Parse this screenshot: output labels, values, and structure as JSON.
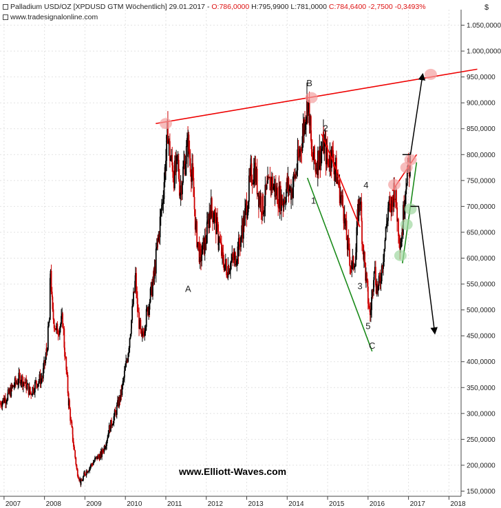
{
  "header": {
    "instrument": "Palladium USD/OZ [XPDUSD GTM  Wöchentlich] 29.01.2017 - ",
    "ohlc_open": "O:786,0000",
    "ohlc_high": " H:795,9900",
    "ohlc_low": " L:781,0000",
    "ohlc_change": " C:784,6400 -2,7500 -0,3493%",
    "website": "www.tradesignalonline.com"
  },
  "currency_symbol": "$",
  "watermark": "www.Elliott-Waves.com",
  "colors": {
    "candle_up": "#000000",
    "candle_down": "#cc0000",
    "trend_red": "#ee0000",
    "trend_green": "#1a8a1a",
    "projection": "#000000",
    "highlight_red": "#f4a0a0",
    "highlight_green": "#9fd79f"
  },
  "chart_data": {
    "type": "line",
    "xlabel": "",
    "ylabel": "",
    "x_ticks": [
      "2007",
      "2008",
      "2009",
      "2010",
      "2011",
      "2012",
      "2013",
      "2014",
      "2015",
      "2016",
      "2017",
      "2018"
    ],
    "y_ticks": [
      "150,0000",
      "200,0000",
      "250,0000",
      "300,0000",
      "350,0000",
      "400,0000",
      "450,0000",
      "500,0000",
      "550,0000",
      "600,0000",
      "650,0000",
      "700,0000",
      "750,0000",
      "800,0000",
      "850,0000",
      "900,0000",
      "950,0000",
      "1.000,0000",
      "1.050,0000"
    ],
    "ylim": [
      140,
      1080
    ],
    "xlim": [
      2006.9,
      2018.3
    ],
    "series": [
      {
        "values": [
          [
            2006.9,
            320
          ],
          [
            2007.1,
            335
          ],
          [
            2007.25,
            355
          ],
          [
            2007.4,
            370
          ],
          [
            2007.55,
            355
          ],
          [
            2007.65,
            340
          ],
          [
            2007.8,
            360
          ],
          [
            2007.95,
            370
          ],
          [
            2008.05,
            420
          ],
          [
            2008.12,
            480
          ],
          [
            2008.15,
            580
          ],
          [
            2008.2,
            490
          ],
          [
            2008.3,
            460
          ],
          [
            2008.45,
            480
          ],
          [
            2008.5,
            420
          ],
          [
            2008.6,
            320
          ],
          [
            2008.7,
            250
          ],
          [
            2008.8,
            190
          ],
          [
            2008.9,
            165
          ],
          [
            2009.0,
            185
          ],
          [
            2009.15,
            200
          ],
          [
            2009.3,
            215
          ],
          [
            2009.4,
            220
          ],
          [
            2009.5,
            240
          ],
          [
            2009.6,
            270
          ],
          [
            2009.75,
            300
          ],
          [
            2009.9,
            340
          ],
          [
            2010.05,
            410
          ],
          [
            2010.15,
            480
          ],
          [
            2010.2,
            520
          ],
          [
            2010.25,
            560
          ],
          [
            2010.3,
            500
          ],
          [
            2010.4,
            440
          ],
          [
            2010.5,
            480
          ],
          [
            2010.6,
            520
          ],
          [
            2010.7,
            560
          ],
          [
            2010.8,
            630
          ],
          [
            2010.9,
            700
          ],
          [
            2011.0,
            790
          ],
          [
            2011.05,
            850
          ],
          [
            2011.1,
            800
          ],
          [
            2011.2,
            760
          ],
          [
            2011.3,
            780
          ],
          [
            2011.35,
            730
          ],
          [
            2011.45,
            780
          ],
          [
            2011.55,
            820
          ],
          [
            2011.65,
            760
          ],
          [
            2011.75,
            650
          ],
          [
            2011.85,
            600
          ],
          [
            2012.0,
            640
          ],
          [
            2012.1,
            700
          ],
          [
            2012.2,
            680
          ],
          [
            2012.3,
            640
          ],
          [
            2012.4,
            600
          ],
          [
            2012.5,
            580
          ],
          [
            2012.6,
            590
          ],
          [
            2012.7,
            600
          ],
          [
            2012.8,
            620
          ],
          [
            2012.9,
            660
          ],
          [
            2013.0,
            700
          ],
          [
            2013.1,
            760
          ],
          [
            2013.2,
            770
          ],
          [
            2013.3,
            720
          ],
          [
            2013.4,
            700
          ],
          [
            2013.5,
            730
          ],
          [
            2013.6,
            750
          ],
          [
            2013.7,
            730
          ],
          [
            2013.8,
            720
          ],
          [
            2013.9,
            710
          ],
          [
            2014.0,
            740
          ],
          [
            2014.1,
            730
          ],
          [
            2014.2,
            760
          ],
          [
            2014.3,
            800
          ],
          [
            2014.4,
            850
          ],
          [
            2014.45,
            880
          ],
          [
            2014.5,
            905
          ],
          [
            2014.55,
            880
          ],
          [
            2014.6,
            800
          ],
          [
            2014.7,
            780
          ],
          [
            2014.8,
            800
          ],
          [
            2014.9,
            820
          ],
          [
            2015.0,
            790
          ],
          [
            2015.1,
            800
          ],
          [
            2015.2,
            770
          ],
          [
            2015.3,
            730
          ],
          [
            2015.4,
            690
          ],
          [
            2015.45,
            650
          ],
          [
            2015.5,
            620
          ],
          [
            2015.55,
            600
          ],
          [
            2015.6,
            580
          ],
          [
            2015.7,
            610
          ],
          [
            2015.75,
            690
          ],
          [
            2015.8,
            720
          ],
          [
            2015.85,
            650
          ],
          [
            2015.9,
            600
          ],
          [
            2015.95,
            560
          ],
          [
            2016.0,
            520
          ],
          [
            2016.05,
            490
          ],
          [
            2016.1,
            530
          ],
          [
            2016.15,
            590
          ],
          [
            2016.2,
            550
          ],
          [
            2016.25,
            540
          ],
          [
            2016.3,
            560
          ],
          [
            2016.4,
            620
          ],
          [
            2016.5,
            700
          ],
          [
            2016.55,
            690
          ],
          [
            2016.6,
            710
          ],
          [
            2016.65,
            740
          ],
          [
            2016.7,
            700
          ],
          [
            2016.75,
            660
          ],
          [
            2016.8,
            630
          ],
          [
            2016.85,
            660
          ],
          [
            2016.9,
            720
          ],
          [
            2016.95,
            760
          ],
          [
            2017.0,
            770
          ],
          [
            2017.05,
            785
          ]
        ]
      }
    ],
    "annotations": [
      {
        "text": "A",
        "x": 2011.55,
        "y": 535
      },
      {
        "text": "B",
        "x": 2014.55,
        "y": 932
      },
      {
        "text": "C",
        "x": 2016.1,
        "y": 425
      },
      {
        "text": "1",
        "x": 2014.65,
        "y": 705
      },
      {
        "text": "2",
        "x": 2014.95,
        "y": 845
      },
      {
        "text": "3",
        "x": 2015.8,
        "y": 540
      },
      {
        "text": "4",
        "x": 2015.95,
        "y": 735
      },
      {
        "text": "5",
        "x": 2016.0,
        "y": 463
      }
    ],
    "trendlines": [
      {
        "kind": "red",
        "points": [
          [
            2010.75,
            860
          ],
          [
            2018.7,
            965
          ]
        ]
      },
      {
        "kind": "red",
        "points": [
          [
            2014.85,
            840
          ],
          [
            2015.8,
            660
          ]
        ]
      },
      {
        "kind": "red",
        "points": [
          [
            2016.6,
            730
          ],
          [
            2017.2,
            800
          ]
        ]
      },
      {
        "kind": "green",
        "points": [
          [
            2014.5,
            755
          ],
          [
            2016.1,
            420
          ]
        ]
      },
      {
        "kind": "green",
        "points": [
          [
            2016.85,
            590
          ],
          [
            2017.2,
            785
          ]
        ]
      }
    ],
    "projections": [
      {
        "points": [
          [
            2017.05,
            800
          ],
          [
            2017.35,
            955
          ]
        ]
      },
      {
        "points": [
          [
            2017.05,
            700
          ],
          [
            2017.25,
            700
          ],
          [
            2017.65,
            455
          ]
        ]
      }
    ],
    "highlights": [
      {
        "kind": "red",
        "x": 2011.0,
        "y": 860
      },
      {
        "kind": "red",
        "x": 2014.6,
        "y": 910
      },
      {
        "kind": "red",
        "x": 2016.65,
        "y": 742
      },
      {
        "kind": "red",
        "x": 2016.95,
        "y": 775
      },
      {
        "kind": "red",
        "x": 2017.05,
        "y": 790
      },
      {
        "kind": "red",
        "x": 2017.55,
        "y": 955
      },
      {
        "kind": "green",
        "x": 2016.8,
        "y": 605
      },
      {
        "kind": "green",
        "x": 2016.95,
        "y": 665
      },
      {
        "kind": "green",
        "x": 2017.05,
        "y": 695
      }
    ]
  }
}
